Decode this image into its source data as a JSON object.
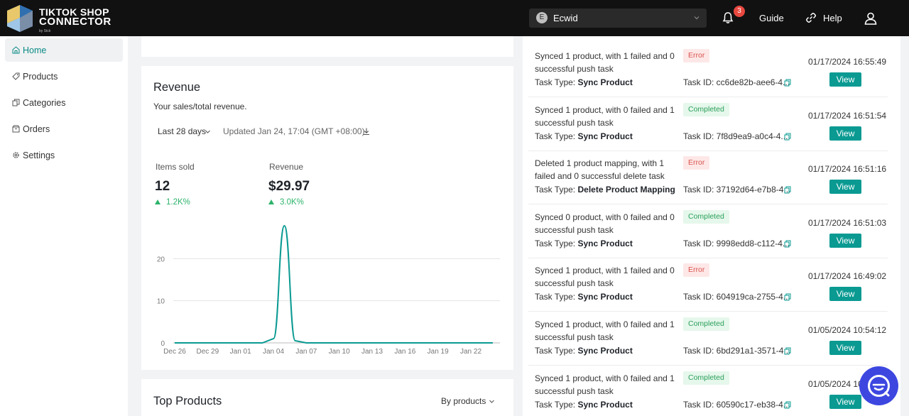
{
  "header": {
    "logo": {
      "line1": "TIKTOK SHOP",
      "line2": "CONNECTOR",
      "by": "by Stck"
    },
    "store": {
      "initial": "E",
      "name": "Ecwid"
    },
    "notifications": {
      "count": "3"
    },
    "guide_label": "Guide",
    "help_label": "Help"
  },
  "sidebar": {
    "items": [
      {
        "label": "Home",
        "icon": "home-icon",
        "active": true
      },
      {
        "label": "Products",
        "icon": "tag-icon"
      },
      {
        "label": "Categories",
        "icon": "copy-icon"
      },
      {
        "label": "Orders",
        "icon": "box-icon"
      },
      {
        "label": "Settings",
        "icon": "gear-icon"
      }
    ]
  },
  "revenue": {
    "title": "Revenue",
    "subtitle": "Your sales/total revenue.",
    "range": "Last 28 days",
    "updated": "Updated Jan 24, 17:04 (GMT +08:00)",
    "metrics": [
      {
        "label": "Items sold",
        "value": "12",
        "change": "1.2K%"
      },
      {
        "label": "Revenue",
        "value": "$29.97",
        "change": "3.0K%"
      }
    ]
  },
  "chart_data": {
    "type": "line",
    "title": "",
    "xlabel": "",
    "ylabel": "",
    "x_ticks": [
      "Dec 26",
      "Dec 29",
      "Jan 01",
      "Jan 04",
      "Jan 07",
      "Jan 10",
      "Jan 13",
      "Jan 16",
      "Jan 19",
      "Jan 22"
    ],
    "y_ticks": [
      0,
      10,
      20
    ],
    "ylim": [
      0,
      30
    ],
    "grid": true,
    "series": [
      {
        "color": "#0a9a92",
        "points": [
          [
            "Dec 26",
            0
          ],
          [
            "Dec 29",
            0
          ],
          [
            "Jan 01",
            0
          ],
          [
            "Jan 03",
            0
          ],
          [
            "Jan 04",
            1
          ],
          [
            "Jan 05",
            27.8
          ],
          [
            "Jan 06",
            0.5
          ],
          [
            "Jan 07",
            0
          ],
          [
            "Jan 10",
            0
          ],
          [
            "Jan 13",
            0
          ],
          [
            "Jan 16",
            0
          ],
          [
            "Jan 19",
            0
          ],
          [
            "Jan 22",
            0
          ],
          [
            "Jan 24",
            0
          ]
        ]
      }
    ]
  },
  "top_products": {
    "title": "Top Products",
    "selector": "By products"
  },
  "tasks": [
    {
      "message": "Synced 1 product, with 1 failed and 0 successful push task",
      "status": "Error",
      "kind": "err",
      "type_prefix": "Task Type:",
      "type": "Sync Product",
      "task_id": "Task ID: cc6de82b-aee6-4...",
      "time": "01/17/2024 16:55:49",
      "view": "View"
    },
    {
      "message": "Synced 1 product, with 0 failed and 1 successful push task",
      "status": "Completed",
      "kind": "ok",
      "type_prefix": "Task Type:",
      "type": "Sync Product",
      "task_id": "Task ID: 7f8d9ea9-a0c4-4...",
      "time": "01/17/2024 16:51:54",
      "view": "View"
    },
    {
      "message": "Deleted 1 product mapping, with 1 failed and 0 successful delete task",
      "status": "Error",
      "kind": "err",
      "type_prefix": "Task Type:",
      "type": "Delete Product Mapping",
      "task_id": "Task ID: 37192d64-e7b8-4...",
      "time": "01/17/2024 16:51:16",
      "view": "View"
    },
    {
      "message": "Synced 0 product, with 0 failed and 0 successful push task",
      "status": "Completed",
      "kind": "ok",
      "type_prefix": "Task Type:",
      "type": "Sync Product",
      "task_id": "Task ID: 9998edd8-c112-4...",
      "time": "01/17/2024 16:51:03",
      "view": "View"
    },
    {
      "message": "Synced 1 product, with 1 failed and 0 successful push task",
      "status": "Error",
      "kind": "err",
      "type_prefix": "Task Type:",
      "type": "Sync Product",
      "task_id": "Task ID: 604919ca-2755-4...",
      "time": "01/17/2024 16:49:02",
      "view": "View"
    },
    {
      "message": "Synced 1 product, with 0 failed and 1 successful push task",
      "status": "Completed",
      "kind": "ok",
      "type_prefix": "Task Type:",
      "type": "Sync Product",
      "task_id": "Task ID: 6bd291a1-3571-4...",
      "time": "01/05/2024 10:54:12",
      "view": "View"
    },
    {
      "message": "Synced 1 product, with 0 failed and 1 successful push task",
      "status": "Completed",
      "kind": "ok",
      "type_prefix": "Task Type:",
      "type": "Sync Product",
      "task_id": "Task ID: 60590c17-eb38-4...",
      "time": "01/05/2024 10...",
      "view": "View"
    }
  ],
  "colors": {
    "accent": "#0a9a92",
    "header_bg": "#111111",
    "error": "#d9534f",
    "success": "#2aa05a",
    "chat": "#3d47e0"
  }
}
